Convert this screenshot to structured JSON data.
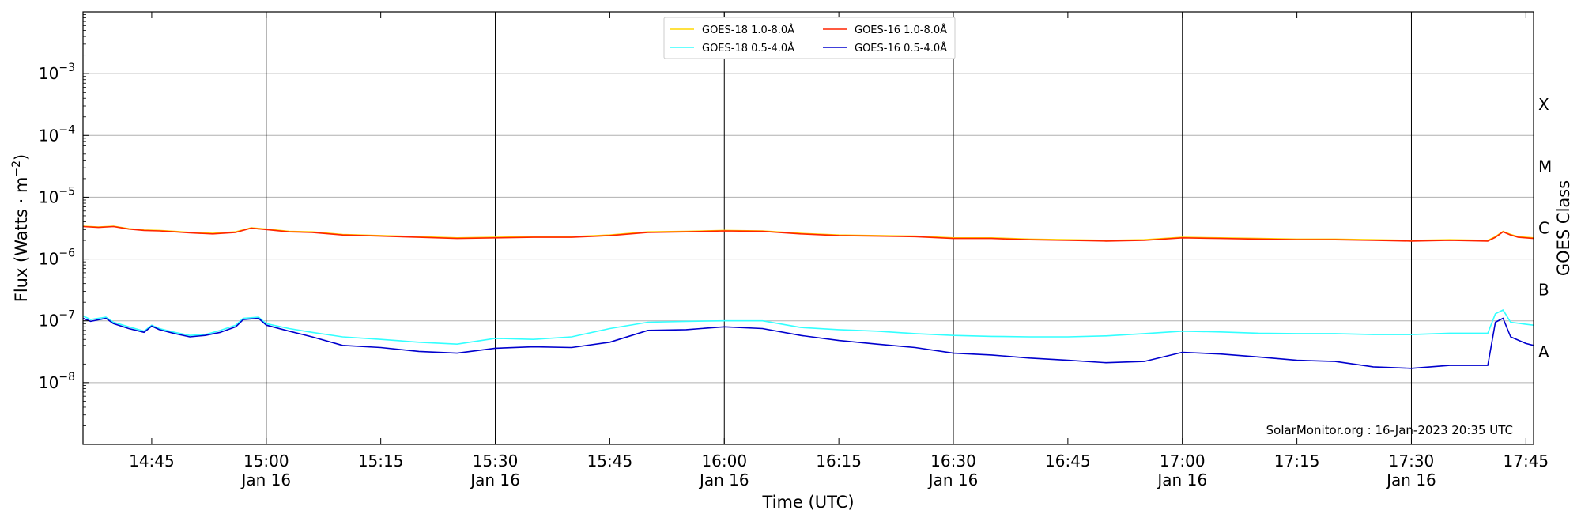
{
  "chart_data": {
    "type": "line",
    "ylabel": "Flux (Watts · m",
    "ylabel_sup": "−2",
    "ylabel_close": ")",
    "xlabel": "Time (UTC)",
    "right_label": "GOES Class",
    "credit": "SolarMonitor.org : 16-Jan-2023 20:35 UTC",
    "y_scale": "log",
    "ylim": [
      1e-09,
      0.01
    ],
    "xlim": [
      "14:36",
      "17:46"
    ],
    "y_ticks": [
      {
        "value": 1e-08,
        "base": "10",
        "exp": "−8"
      },
      {
        "value": 1e-07,
        "base": "10",
        "exp": "−7"
      },
      {
        "value": 1e-06,
        "base": "10",
        "exp": "−6"
      },
      {
        "value": 1e-05,
        "base": "10",
        "exp": "−5"
      },
      {
        "value": 0.0001,
        "base": "10",
        "exp": "−4"
      },
      {
        "value": 0.001,
        "base": "10",
        "exp": "−3"
      }
    ],
    "x_ticks": [
      {
        "time": "14:45",
        "label": "14:45",
        "sub": ""
      },
      {
        "time": "15:00",
        "label": "15:00",
        "sub": "Jan 16"
      },
      {
        "time": "15:15",
        "label": "15:15",
        "sub": ""
      },
      {
        "time": "15:30",
        "label": "15:30",
        "sub": "Jan 16"
      },
      {
        "time": "15:45",
        "label": "15:45",
        "sub": ""
      },
      {
        "time": "16:00",
        "label": "16:00",
        "sub": "Jan 16"
      },
      {
        "time": "16:15",
        "label": "16:15",
        "sub": ""
      },
      {
        "time": "16:30",
        "label": "16:30",
        "sub": "Jan 16"
      },
      {
        "time": "16:45",
        "label": "16:45",
        "sub": ""
      },
      {
        "time": "17:00",
        "label": "17:00",
        "sub": "Jan 16"
      },
      {
        "time": "17:15",
        "label": "17:15",
        "sub": ""
      },
      {
        "time": "17:30",
        "label": "17:30",
        "sub": "Jan 16"
      },
      {
        "time": "17:45",
        "label": "17:45",
        "sub": ""
      }
    ],
    "goes_classes": [
      {
        "label": "A",
        "value": 3.16e-08
      },
      {
        "label": "B",
        "value": 3.16e-07
      },
      {
        "label": "C",
        "value": 3.16e-06
      },
      {
        "label": "M",
        "value": 3.16e-05
      },
      {
        "label": "X",
        "value": 0.000316
      }
    ],
    "grid": "horizontal",
    "legend_position": "top-center",
    "series": [
      {
        "name": "GOES-18 1.0-8.0Å",
        "color": "#FFD700",
        "data": [
          [
            "14:36",
            3.4e-06
          ],
          [
            "14:38",
            3.3e-06
          ],
          [
            "14:40",
            3.4e-06
          ],
          [
            "14:42",
            3.1e-06
          ],
          [
            "14:44",
            2.95e-06
          ],
          [
            "14:46",
            2.9e-06
          ],
          [
            "14:48",
            2.8e-06
          ],
          [
            "14:50",
            2.7e-06
          ],
          [
            "14:53",
            2.6e-06
          ],
          [
            "14:56",
            2.75e-06
          ],
          [
            "14:58",
            3.2e-06
          ],
          [
            "15:00",
            3.05e-06
          ],
          [
            "15:03",
            2.8e-06
          ],
          [
            "15:06",
            2.75e-06
          ],
          [
            "15:10",
            2.5e-06
          ],
          [
            "15:15",
            2.4e-06
          ],
          [
            "15:20",
            2.3e-06
          ],
          [
            "15:25",
            2.2e-06
          ],
          [
            "15:30",
            2.25e-06
          ],
          [
            "15:35",
            2.3e-06
          ],
          [
            "15:40",
            2.3e-06
          ],
          [
            "15:45",
            2.45e-06
          ],
          [
            "15:50",
            2.75e-06
          ],
          [
            "15:55",
            2.8e-06
          ],
          [
            "16:00",
            2.9e-06
          ],
          [
            "16:05",
            2.85e-06
          ],
          [
            "16:10",
            2.6e-06
          ],
          [
            "16:15",
            2.45e-06
          ],
          [
            "16:20",
            2.4e-06
          ],
          [
            "16:25",
            2.35e-06
          ],
          [
            "16:30",
            2.2e-06
          ],
          [
            "16:35",
            2.2e-06
          ],
          [
            "16:40",
            2.1e-06
          ],
          [
            "16:45",
            2.05e-06
          ],
          [
            "16:50",
            2e-06
          ],
          [
            "16:55",
            2.05e-06
          ],
          [
            "17:00",
            2.25e-06
          ],
          [
            "17:05",
            2.2e-06
          ],
          [
            "17:10",
            2.15e-06
          ],
          [
            "17:15",
            2.1e-06
          ],
          [
            "17:20",
            2.1e-06
          ],
          [
            "17:25",
            2.05e-06
          ],
          [
            "17:30",
            2e-06
          ],
          [
            "17:35",
            2.05e-06
          ],
          [
            "17:40",
            2e-06
          ],
          [
            "17:41",
            2.3e-06
          ],
          [
            "17:42",
            2.8e-06
          ],
          [
            "17:43",
            2.5e-06
          ],
          [
            "17:44",
            2.3e-06
          ],
          [
            "17:46",
            2.2e-06
          ]
        ]
      },
      {
        "name": "GOES-18 0.5-4.0Å",
        "color": "#33FFFF",
        "data": [
          [
            "14:36",
            1.2e-07
          ],
          [
            "14:37",
            1.05e-07
          ],
          [
            "14:39",
            1.15e-07
          ],
          [
            "14:40",
            9.5e-08
          ],
          [
            "14:42",
            8e-08
          ],
          [
            "14:44",
            6.8e-08
          ],
          [
            "14:45",
            8.5e-08
          ],
          [
            "14:46",
            7.5e-08
          ],
          [
            "14:48",
            6.5e-08
          ],
          [
            "14:50",
            5.8e-08
          ],
          [
            "14:52",
            6e-08
          ],
          [
            "14:54",
            7e-08
          ],
          [
            "14:56",
            8.5e-08
          ],
          [
            "14:57",
            1.1e-07
          ],
          [
            "14:59",
            1.15e-07
          ],
          [
            "15:00",
            9e-08
          ],
          [
            "15:03",
            7.5e-08
          ],
          [
            "15:06",
            6.5e-08
          ],
          [
            "15:10",
            5.5e-08
          ],
          [
            "15:15",
            5e-08
          ],
          [
            "15:20",
            4.5e-08
          ],
          [
            "15:25",
            4.2e-08
          ],
          [
            "15:30",
            5.2e-08
          ],
          [
            "15:35",
            5e-08
          ],
          [
            "15:40",
            5.5e-08
          ],
          [
            "15:45",
            7.5e-08
          ],
          [
            "15:50",
            9.5e-08
          ],
          [
            "15:55",
            9.8e-08
          ],
          [
            "16:00",
            1e-07
          ],
          [
            "16:05",
            1e-07
          ],
          [
            "16:10",
            7.8e-08
          ],
          [
            "16:15",
            7.2e-08
          ],
          [
            "16:20",
            6.8e-08
          ],
          [
            "16:25",
            6.2e-08
          ],
          [
            "16:30",
            5.8e-08
          ],
          [
            "16:35",
            5.6e-08
          ],
          [
            "16:40",
            5.5e-08
          ],
          [
            "16:45",
            5.5e-08
          ],
          [
            "16:50",
            5.7e-08
          ],
          [
            "16:55",
            6.2e-08
          ],
          [
            "17:00",
            6.8e-08
          ],
          [
            "17:05",
            6.6e-08
          ],
          [
            "17:10",
            6.3e-08
          ],
          [
            "17:15",
            6.2e-08
          ],
          [
            "17:20",
            6.2e-08
          ],
          [
            "17:25",
            6e-08
          ],
          [
            "17:30",
            6e-08
          ],
          [
            "17:35",
            6.3e-08
          ],
          [
            "17:40",
            6.3e-08
          ],
          [
            "17:41",
            1.3e-07
          ],
          [
            "17:42",
            1.5e-07
          ],
          [
            "17:43",
            9.5e-08
          ],
          [
            "17:45",
            8.8e-08
          ],
          [
            "17:46",
            8.5e-08
          ]
        ]
      },
      {
        "name": "GOES-16 1.0-8.0Å",
        "color": "#FF2400",
        "data": [
          [
            "14:36",
            3.35e-06
          ],
          [
            "14:38",
            3.25e-06
          ],
          [
            "14:40",
            3.35e-06
          ],
          [
            "14:42",
            3.05e-06
          ],
          [
            "14:44",
            2.9e-06
          ],
          [
            "14:46",
            2.85e-06
          ],
          [
            "14:48",
            2.75e-06
          ],
          [
            "14:50",
            2.65e-06
          ],
          [
            "14:53",
            2.55e-06
          ],
          [
            "14:56",
            2.7e-06
          ],
          [
            "14:58",
            3.15e-06
          ],
          [
            "15:00",
            3e-06
          ],
          [
            "15:03",
            2.75e-06
          ],
          [
            "15:06",
            2.7e-06
          ],
          [
            "15:10",
            2.45e-06
          ],
          [
            "15:15",
            2.35e-06
          ],
          [
            "15:20",
            2.25e-06
          ],
          [
            "15:25",
            2.15e-06
          ],
          [
            "15:30",
            2.2e-06
          ],
          [
            "15:35",
            2.25e-06
          ],
          [
            "15:40",
            2.25e-06
          ],
          [
            "15:45",
            2.4e-06
          ],
          [
            "15:50",
            2.7e-06
          ],
          [
            "15:55",
            2.75e-06
          ],
          [
            "16:00",
            2.85e-06
          ],
          [
            "16:05",
            2.8e-06
          ],
          [
            "16:10",
            2.55e-06
          ],
          [
            "16:15",
            2.4e-06
          ],
          [
            "16:20",
            2.35e-06
          ],
          [
            "16:25",
            2.3e-06
          ],
          [
            "16:30",
            2.15e-06
          ],
          [
            "16:35",
            2.15e-06
          ],
          [
            "16:40",
            2.05e-06
          ],
          [
            "16:45",
            2e-06
          ],
          [
            "16:50",
            1.95e-06
          ],
          [
            "16:55",
            2e-06
          ],
          [
            "17:00",
            2.2e-06
          ],
          [
            "17:05",
            2.15e-06
          ],
          [
            "17:10",
            2.1e-06
          ],
          [
            "17:15",
            2.05e-06
          ],
          [
            "17:20",
            2.05e-06
          ],
          [
            "17:25",
            2e-06
          ],
          [
            "17:30",
            1.95e-06
          ],
          [
            "17:35",
            2e-06
          ],
          [
            "17:40",
            1.95e-06
          ],
          [
            "17:41",
            2.25e-06
          ],
          [
            "17:42",
            2.75e-06
          ],
          [
            "17:43",
            2.45e-06
          ],
          [
            "17:44",
            2.25e-06
          ],
          [
            "17:46",
            2.15e-06
          ]
        ]
      },
      {
        "name": "GOES-16 0.5-4.0Å",
        "color": "#0000CD",
        "data": [
          [
            "14:36",
            1.1e-07
          ],
          [
            "14:37",
            9.8e-08
          ],
          [
            "14:39",
            1.1e-07
          ],
          [
            "14:40",
            9e-08
          ],
          [
            "14:42",
            7.5e-08
          ],
          [
            "14:44",
            6.5e-08
          ],
          [
            "14:45",
            8.2e-08
          ],
          [
            "14:46",
            7.2e-08
          ],
          [
            "14:48",
            6.2e-08
          ],
          [
            "14:50",
            5.5e-08
          ],
          [
            "14:52",
            5.8e-08
          ],
          [
            "14:54",
            6.5e-08
          ],
          [
            "14:56",
            8e-08
          ],
          [
            "14:57",
            1.05e-07
          ],
          [
            "14:59",
            1.1e-07
          ],
          [
            "15:00",
            8.5e-08
          ],
          [
            "15:03",
            6.8e-08
          ],
          [
            "15:06",
            5.5e-08
          ],
          [
            "15:10",
            4e-08
          ],
          [
            "15:15",
            3.7e-08
          ],
          [
            "15:20",
            3.2e-08
          ],
          [
            "15:25",
            3e-08
          ],
          [
            "15:30",
            3.6e-08
          ],
          [
            "15:35",
            3.8e-08
          ],
          [
            "15:40",
            3.7e-08
          ],
          [
            "15:45",
            4.5e-08
          ],
          [
            "15:50",
            7e-08
          ],
          [
            "15:55",
            7.2e-08
          ],
          [
            "16:00",
            8e-08
          ],
          [
            "16:05",
            7.5e-08
          ],
          [
            "16:10",
            5.8e-08
          ],
          [
            "16:15",
            4.8e-08
          ],
          [
            "16:20",
            4.2e-08
          ],
          [
            "16:25",
            3.7e-08
          ],
          [
            "16:30",
            3e-08
          ],
          [
            "16:35",
            2.8e-08
          ],
          [
            "16:40",
            2.5e-08
          ],
          [
            "16:45",
            2.3e-08
          ],
          [
            "16:50",
            2.1e-08
          ],
          [
            "16:55",
            2.2e-08
          ],
          [
            "17:00",
            3.1e-08
          ],
          [
            "17:05",
            2.9e-08
          ],
          [
            "17:10",
            2.6e-08
          ],
          [
            "17:15",
            2.3e-08
          ],
          [
            "17:20",
            2.2e-08
          ],
          [
            "17:25",
            1.8e-08
          ],
          [
            "17:30",
            1.7e-08
          ],
          [
            "17:35",
            1.9e-08
          ],
          [
            "17:40",
            1.9e-08
          ],
          [
            "17:41",
            9.5e-08
          ],
          [
            "17:42",
            1.1e-07
          ],
          [
            "17:43",
            5.5e-08
          ],
          [
            "17:45",
            4.3e-08
          ],
          [
            "17:46",
            4e-08
          ]
        ]
      }
    ]
  }
}
